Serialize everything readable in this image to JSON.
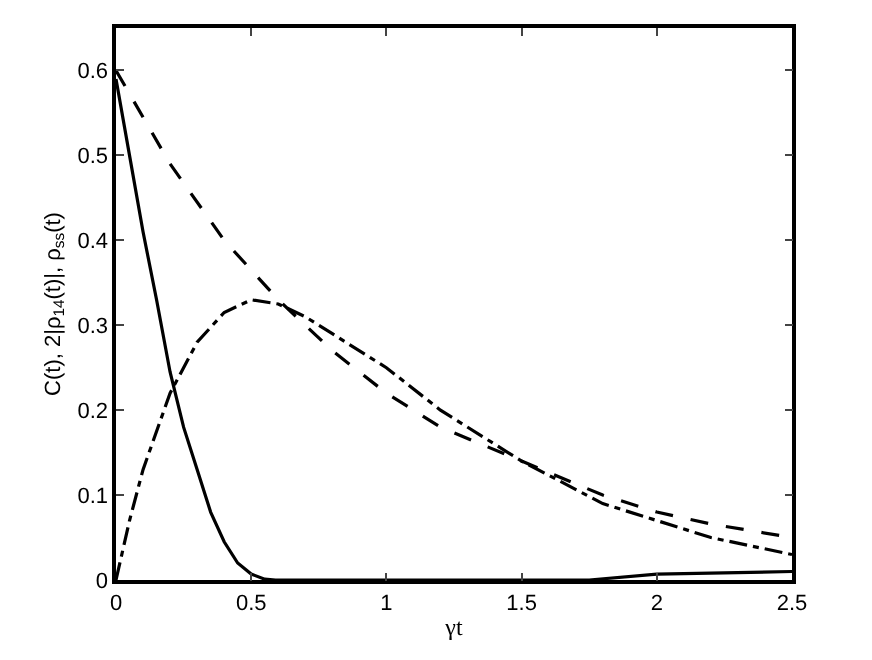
{
  "chart_data": {
    "type": "line",
    "xlabel": "γt",
    "ylabel": "C(t), 2|ρ$_{14}$(t)|, ρ$_{ss}$(t)",
    "xlim": [
      0,
      2.5
    ],
    "ylim": [
      0,
      0.65
    ],
    "xticks": [
      0,
      0.5,
      1,
      1.5,
      2,
      2.5
    ],
    "yticks": [
      0,
      0.1,
      0.2,
      0.3,
      0.4,
      0.5,
      0.6
    ],
    "marker": "none",
    "series": [
      {
        "color": "#000000",
        "line_style": "solid",
        "x": [
          0,
          0.05,
          0.1,
          0.15,
          0.2,
          0.25,
          0.3,
          0.35,
          0.4,
          0.45,
          0.5,
          0.55,
          0.59,
          1.75,
          2.0,
          2.5
        ],
        "values": [
          0.59,
          0.5,
          0.41,
          0.33,
          0.245,
          0.18,
          0.13,
          0.08,
          0.045,
          0.02,
          0.007,
          0.001,
          0,
          0,
          0.007,
          0.01
        ]
      },
      {
        "color": "#000000",
        "line_style": "dashed",
        "x": [
          0,
          0.2,
          0.4,
          0.6,
          0.8,
          1.0,
          1.2,
          1.5,
          1.8,
          2.0,
          2.2,
          2.5
        ],
        "values": [
          0.6,
          0.49,
          0.4,
          0.33,
          0.27,
          0.22,
          0.18,
          0.14,
          0.1,
          0.08,
          0.066,
          0.05
        ]
      },
      {
        "color": "#000000",
        "line_style": "dashdot",
        "x": [
          0,
          0.05,
          0.1,
          0.2,
          0.3,
          0.4,
          0.5,
          0.6,
          0.7,
          0.8,
          1.0,
          1.2,
          1.5,
          1.8,
          2.0,
          2.2,
          2.5
        ],
        "values": [
          0,
          0.07,
          0.13,
          0.22,
          0.28,
          0.315,
          0.33,
          0.325,
          0.31,
          0.29,
          0.25,
          0.2,
          0.14,
          0.09,
          0.07,
          0.05,
          0.03
        ]
      }
    ]
  }
}
